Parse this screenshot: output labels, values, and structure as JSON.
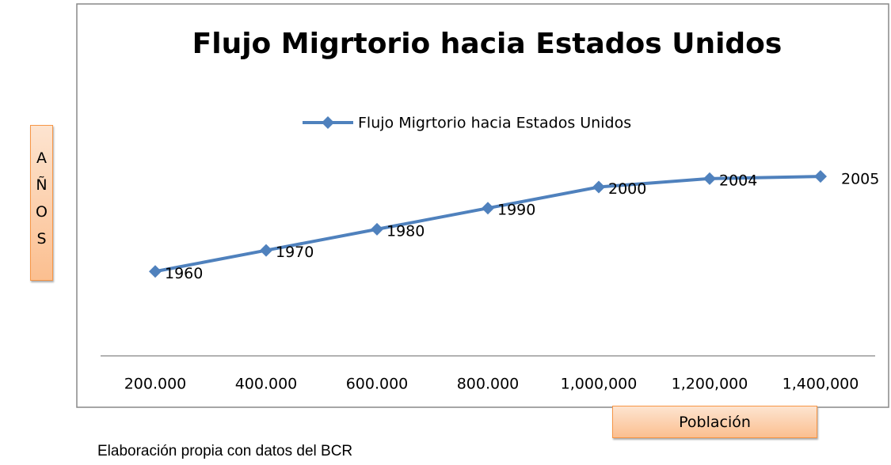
{
  "chart_data": {
    "type": "line",
    "title": "Flujo Migrtorio hacia Estados Unidos",
    "categories": [
      "200.000",
      "400.000",
      "600.000",
      "800.000",
      "1,000,000",
      "1,200,000",
      "1,400,000"
    ],
    "series": [
      {
        "name": "Flujo Migrtorio hacia Estados Unidos",
        "color": "#4f81bd",
        "values": [
          1960,
          1970,
          1980,
          1990,
          2000,
          2004,
          2005
        ]
      }
    ],
    "ylim": [
      1920,
      2080
    ],
    "xlabel": "Población",
    "ylabel": "AÑOS",
    "note": "Elaboración propia con datos del BCR"
  }
}
